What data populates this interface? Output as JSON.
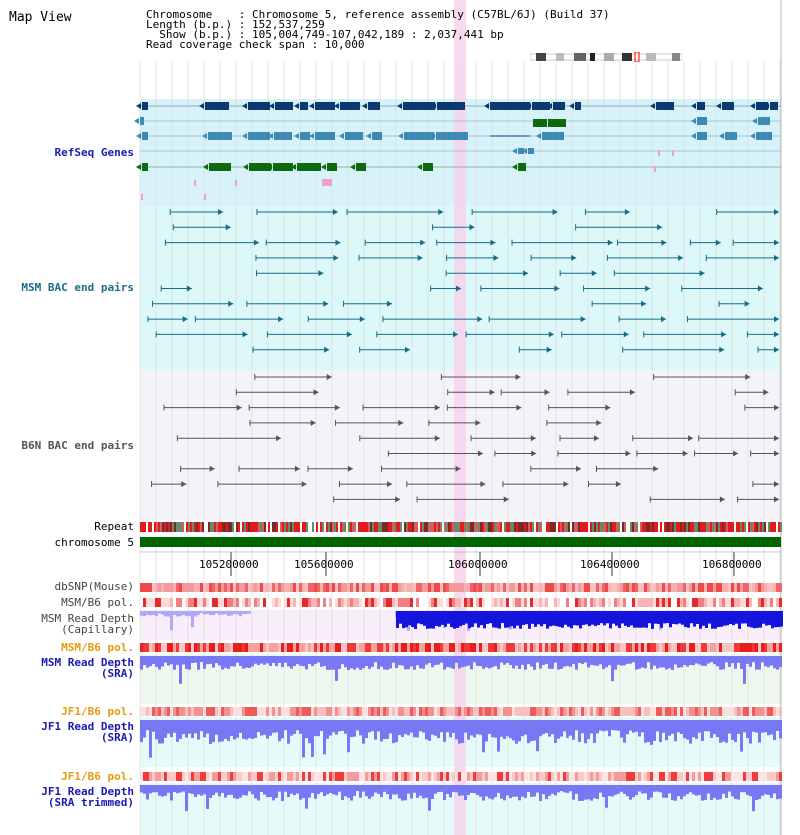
{
  "view": {
    "title": "Map View",
    "info": [
      "Chromosome    : Chromosome 5, reference assembly (C57BL/6J) (Build 37)",
      "Length (b.p.) : 152,537,259",
      "  Show (b.p.) : 105,004,749-107,042,189 : 2,037,441 bp",
      "Read coverage check span : 10,000"
    ]
  },
  "colors": {
    "refseq_bg": "#d8f2fa",
    "bac_bg": "#dcf8f8",
    "b6n_bg": "#f4f4f8",
    "depth_bg": "#f8eefa",
    "sra_bg": "#eef8ee",
    "highlight": "#f6d4ec",
    "gene_dark": "#0c3a6e",
    "gene_mid": "#3f8ab4",
    "gene_green": "#0e6a0e",
    "gene_pink": "#f3a0c8",
    "bac_line": "#166c86",
    "b6n_line": "#555555",
    "chrom_bar": "#006400",
    "depth_blue": "#1414dc",
    "depth_light": "#7878f4",
    "snp_red": "#ee4040"
  },
  "tracks": {
    "refseq": "RefSeq Genes",
    "msm_bac": "MSM BAC end pairs",
    "b6n_bac": "B6N BAC end pairs",
    "repeat": "Repeat",
    "chromosome": "chromosome 5",
    "dbsnp": "dbSNP(Mouse)",
    "msm_pol_cap": "MSM/B6 pol.",
    "msm_depth_cap": [
      "MSM Read Depth",
      "(Capillary)"
    ],
    "msm_pol_sra": "MSM/B6 pol.",
    "msm_depth_sra": [
      "MSM Read Depth",
      "(SRA)"
    ],
    "jf1_pol": "JF1/B6 pol.",
    "jf1_depth": [
      "JF1 Read Depth",
      "(SRA)"
    ],
    "jf1_pol_trim": "JF1/B6 pol.",
    "jf1_depth_trim": [
      "JF1 Read Depth",
      "(SRA trimmed)"
    ]
  },
  "axis": {
    "ticks": [
      "105200000",
      "105600000",
      "106000000",
      "106400000",
      "106800000"
    ]
  }
}
